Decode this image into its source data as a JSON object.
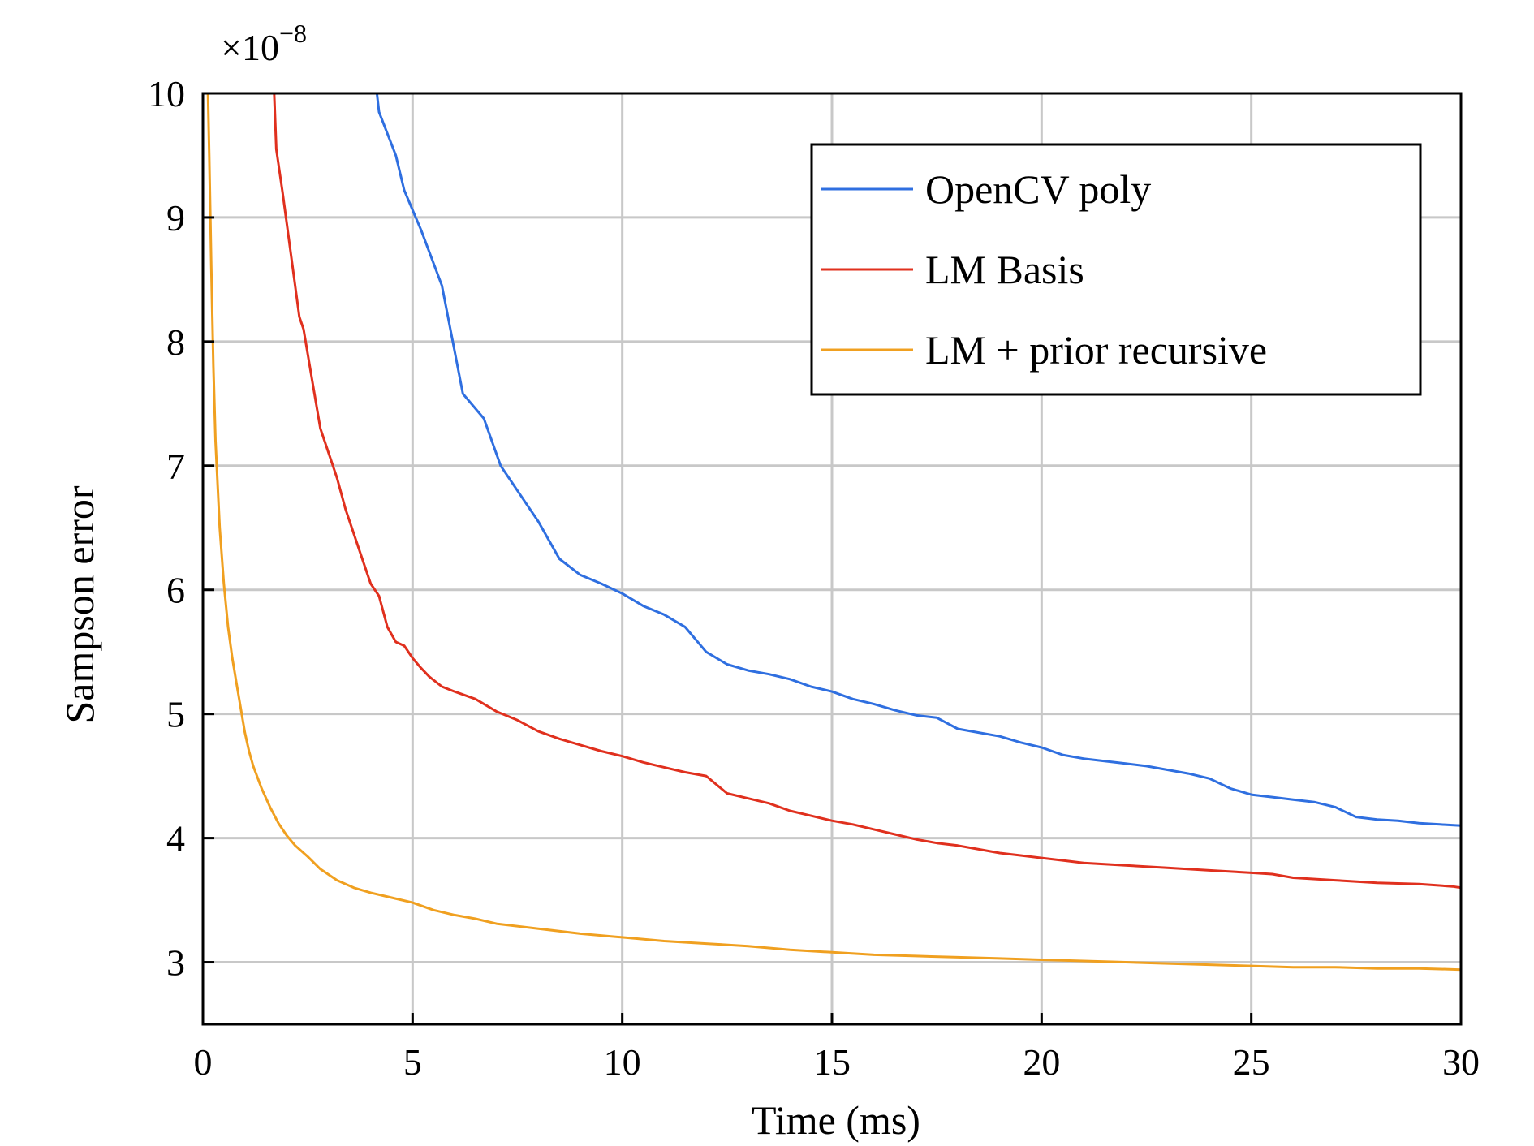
{
  "chart_data": {
    "type": "line",
    "xlabel": "Time (ms)",
    "ylabel": "Sampson error",
    "y_multiplier": {
      "base": "×10",
      "exponent": "−8"
    },
    "xlim": [
      0,
      30
    ],
    "ylim": [
      2.5,
      10
    ],
    "x_ticks": [
      0,
      5,
      10,
      15,
      20,
      25,
      30
    ],
    "x_tick_labels": [
      "0",
      "5",
      "10",
      "15",
      "20",
      "25",
      "30"
    ],
    "y_ticks": [
      3,
      4,
      5,
      6,
      7,
      8,
      9,
      10
    ],
    "y_tick_labels": [
      "3",
      "4",
      "5",
      "6",
      "7",
      "8",
      "9",
      "10"
    ],
    "grid": true,
    "legend_position": "top-right",
    "series": [
      {
        "name": "OpenCV poly",
        "color": "#2f6fe0",
        "x": [
          4.15,
          4.2,
          4.6,
          4.8,
          5.2,
          5.7,
          6.2,
          6.7,
          7.1,
          7.7,
          8.0,
          8.5,
          9.0,
          9.5,
          10.0,
          10.5,
          11.0,
          11.5,
          12.0,
          12.5,
          13.0,
          13.5,
          14.0,
          14.5,
          15.0,
          15.5,
          16.0,
          16.5,
          17.0,
          17.5,
          18.0,
          18.5,
          19.0,
          19.5,
          20.0,
          20.5,
          21.0,
          21.5,
          22.0,
          22.5,
          23.0,
          23.5,
          24.0,
          24.5,
          25.0,
          25.5,
          26.0,
          26.5,
          27.0,
          27.5,
          28.0,
          28.5,
          29.0,
          29.5,
          30.0
        ],
        "y": [
          10.0,
          9.85,
          9.5,
          9.22,
          8.9,
          8.45,
          7.58,
          7.38,
          7.0,
          6.7,
          6.55,
          6.25,
          6.12,
          6.05,
          5.97,
          5.87,
          5.8,
          5.7,
          5.5,
          5.4,
          5.35,
          5.32,
          5.28,
          5.22,
          5.18,
          5.12,
          5.08,
          5.03,
          4.99,
          4.97,
          4.88,
          4.85,
          4.82,
          4.77,
          4.73,
          4.67,
          4.64,
          4.62,
          4.6,
          4.58,
          4.55,
          4.52,
          4.48,
          4.4,
          4.35,
          4.33,
          4.31,
          4.29,
          4.25,
          4.17,
          4.15,
          4.14,
          4.12,
          4.11,
          4.1
        ]
      },
      {
        "name": "LM Basis",
        "color": "#e0301e",
        "x": [
          1.7,
          1.75,
          1.9,
          2.1,
          2.3,
          2.4,
          2.6,
          2.8,
          3.0,
          3.2,
          3.4,
          3.6,
          3.8,
          4.0,
          4.2,
          4.4,
          4.6,
          4.8,
          5.0,
          5.2,
          5.4,
          5.7,
          6.0,
          6.5,
          7.0,
          7.5,
          8.0,
          8.5,
          9.0,
          9.5,
          10.0,
          10.5,
          11.0,
          11.5,
          12.0,
          12.5,
          13.0,
          13.5,
          14.0,
          14.5,
          15.0,
          15.5,
          16.0,
          16.5,
          17.0,
          17.5,
          18.0,
          18.5,
          19.0,
          19.5,
          20.0,
          20.5,
          21.0,
          22.0,
          23.0,
          24.0,
          25.0,
          25.5,
          26.0,
          27.0,
          28.0,
          29.0,
          29.8,
          30.0
        ],
        "y": [
          10.0,
          9.55,
          9.2,
          8.7,
          8.2,
          8.1,
          7.7,
          7.3,
          7.1,
          6.9,
          6.65,
          6.45,
          6.25,
          6.05,
          5.95,
          5.7,
          5.58,
          5.55,
          5.45,
          5.37,
          5.3,
          5.22,
          5.18,
          5.12,
          5.02,
          4.95,
          4.86,
          4.8,
          4.75,
          4.7,
          4.66,
          4.61,
          4.57,
          4.53,
          4.5,
          4.36,
          4.32,
          4.28,
          4.22,
          4.18,
          4.14,
          4.11,
          4.07,
          4.03,
          3.99,
          3.96,
          3.94,
          3.91,
          3.88,
          3.86,
          3.84,
          3.82,
          3.8,
          3.78,
          3.76,
          3.74,
          3.72,
          3.71,
          3.68,
          3.66,
          3.64,
          3.63,
          3.61,
          3.6
        ]
      },
      {
        "name": "LM + prior recursive",
        "color": "#f0a020",
        "x": [
          0.12,
          0.15,
          0.2,
          0.25,
          0.3,
          0.4,
          0.5,
          0.6,
          0.7,
          0.8,
          0.9,
          1.0,
          1.1,
          1.2,
          1.4,
          1.6,
          1.8,
          2.0,
          2.2,
          2.5,
          2.8,
          3.2,
          3.6,
          4.0,
          4.5,
          5.0,
          5.5,
          6.0,
          6.5,
          7.0,
          8.0,
          9.0,
          10.0,
          11.0,
          12.0,
          13.0,
          14.0,
          15.0,
          16.0,
          17.0,
          18.0,
          19.0,
          20.0,
          21.0,
          22.0,
          23.0,
          24.0,
          25.0,
          26.0,
          27.0,
          28.0,
          29.0,
          30.0
        ],
        "y": [
          10.0,
          9.5,
          8.6,
          7.8,
          7.2,
          6.5,
          6.05,
          5.7,
          5.45,
          5.25,
          5.05,
          4.85,
          4.7,
          4.58,
          4.4,
          4.25,
          4.12,
          4.02,
          3.94,
          3.85,
          3.75,
          3.66,
          3.6,
          3.56,
          3.52,
          3.48,
          3.42,
          3.38,
          3.35,
          3.31,
          3.27,
          3.23,
          3.2,
          3.17,
          3.15,
          3.13,
          3.1,
          3.08,
          3.06,
          3.05,
          3.04,
          3.03,
          3.02,
          3.01,
          3.0,
          2.99,
          2.98,
          2.97,
          2.96,
          2.96,
          2.95,
          2.95,
          2.94
        ]
      }
    ]
  }
}
